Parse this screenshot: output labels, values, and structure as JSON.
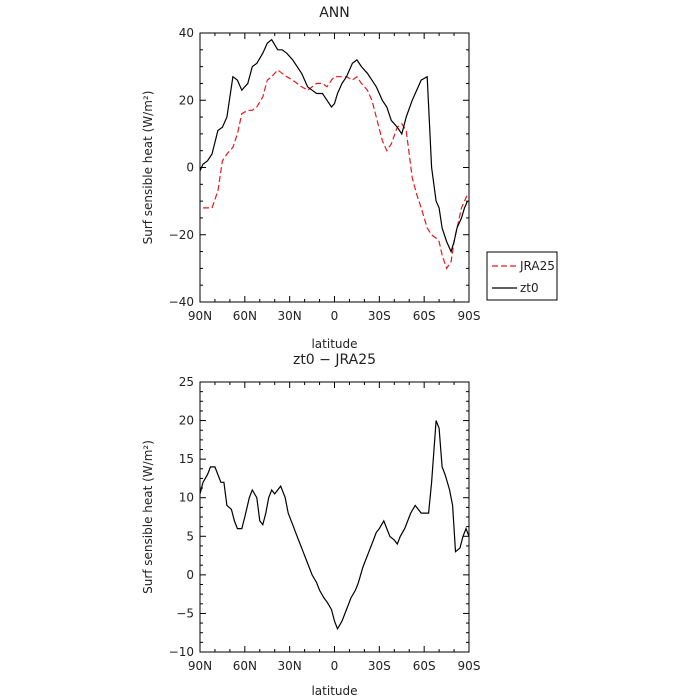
{
  "chart_data": [
    {
      "type": "line",
      "title": "ANN",
      "xlabel": "latitude",
      "ylabel": "Surf sensible heat (W/m²)",
      "xlim": [
        90,
        -90
      ],
      "ylim": [
        -40,
        40
      ],
      "xticks": [
        90,
        60,
        30,
        0,
        -30,
        -60,
        -90
      ],
      "xtick_labels": [
        "90N",
        "60N",
        "30N",
        "0",
        "30S",
        "60S",
        "90S"
      ],
      "yticks": [
        -40,
        -20,
        0,
        20,
        40
      ],
      "ytick_labels": [
        "−40",
        "−20",
        "0",
        "20",
        "40"
      ],
      "legend": {
        "placement": "right"
      },
      "series": [
        {
          "name": "JRA25",
          "color": "#e41a1c",
          "dash": "dashed",
          "x": [
            88,
            85,
            82,
            78,
            75,
            72,
            68,
            65,
            62,
            58,
            55,
            52,
            48,
            45,
            42,
            38,
            35,
            32,
            28,
            25,
            22,
            18,
            15,
            12,
            8,
            5,
            2,
            0,
            -2,
            -5,
            -8,
            -12,
            -15,
            -18,
            -22,
            -25,
            -28,
            -32,
            -35,
            -38,
            -42,
            -45,
            -48,
            -52,
            -55,
            -58,
            -62,
            -65,
            -68,
            -70,
            -72,
            -75,
            -78,
            -80,
            -82,
            -85,
            -87,
            -89
          ],
          "y": [
            -12,
            -12,
            -12,
            -7,
            2,
            4,
            6,
            10,
            16,
            17,
            17,
            18,
            21,
            26,
            27,
            29,
            28,
            27,
            26,
            25,
            24,
            23,
            24,
            25,
            25,
            24,
            26,
            27,
            27,
            27,
            27,
            26,
            27,
            25,
            23,
            20,
            15,
            8,
            5,
            7,
            12,
            13,
            11,
            -3,
            -8,
            -12,
            -18,
            -20,
            -21,
            -22,
            -26,
            -30,
            -28,
            -22,
            -18,
            -12,
            -10,
            -8
          ]
        },
        {
          "name": "zt0",
          "color": "#000000",
          "dash": "solid",
          "x": [
            90,
            88,
            85,
            82,
            78,
            75,
            72,
            68,
            65,
            62,
            58,
            55,
            52,
            48,
            45,
            42,
            38,
            35,
            32,
            28,
            25,
            22,
            18,
            15,
            12,
            8,
            5,
            2,
            0,
            -2,
            -5,
            -8,
            -12,
            -15,
            -18,
            -22,
            -25,
            -28,
            -32,
            -35,
            -38,
            -42,
            -45,
            -48,
            -52,
            -55,
            -58,
            -62,
            -65,
            -68,
            -70,
            -72,
            -75,
            -78,
            -80,
            -82,
            -85,
            -87,
            -89
          ],
          "y": [
            -1,
            1,
            2,
            4,
            11,
            12,
            15,
            27,
            26,
            23,
            25,
            30,
            31,
            34,
            37,
            38,
            35,
            35,
            34,
            32,
            30,
            28,
            24,
            23,
            22,
            22,
            20,
            18,
            19,
            22,
            25,
            27,
            31,
            32,
            30,
            28,
            26,
            24,
            20,
            18,
            14,
            12,
            10,
            15,
            20,
            23,
            26,
            27,
            0,
            -10,
            -12,
            -18,
            -22,
            -25,
            -22,
            -18,
            -15,
            -12,
            -10
          ]
        }
      ]
    },
    {
      "type": "line",
      "title": "zt0 − JRA25",
      "xlabel": "latitude",
      "ylabel": "Surf sensible heat (W/m²)",
      "xlim": [
        90,
        -90
      ],
      "ylim": [
        -10,
        25
      ],
      "xticks": [
        90,
        60,
        30,
        0,
        -30,
        -60,
        -90
      ],
      "xtick_labels": [
        "90N",
        "60N",
        "30N",
        "0",
        "30S",
        "60S",
        "90S"
      ],
      "yticks": [
        -10,
        -5,
        0,
        5,
        10,
        15,
        20,
        25
      ],
      "ytick_labels": [
        "−10",
        "−5",
        "0",
        "5",
        "10",
        "15",
        "20",
        "25"
      ],
      "series": [
        {
          "name": "",
          "color": "#000000",
          "dash": "solid",
          "x": [
            90,
            88,
            85,
            83,
            80,
            78,
            76,
            74,
            72,
            69,
            67,
            65,
            62,
            60,
            57,
            55,
            52,
            50,
            48,
            46,
            44,
            42,
            40,
            38,
            36,
            33,
            31,
            28,
            26,
            24,
            21,
            19,
            17,
            15,
            12,
            10,
            7,
            5,
            2,
            0,
            -2,
            -5,
            -7,
            -9,
            -11,
            -14,
            -16,
            -19,
            -21,
            -23,
            -26,
            -28,
            -30,
            -33,
            -35,
            -37,
            -40,
            -42,
            -44,
            -47,
            -49,
            -51,
            -54,
            -56,
            -58,
            -60,
            -63,
            -65,
            -68,
            -70,
            -72,
            -74,
            -77,
            -79,
            -81,
            -84,
            -86,
            -88,
            -90
          ],
          "y": [
            10.5,
            12,
            13,
            14,
            14,
            13,
            12,
            12,
            9,
            8.5,
            7,
            6,
            6,
            7.5,
            10,
            11,
            10,
            7,
            6.5,
            8,
            10,
            11,
            10.5,
            11,
            11.5,
            10,
            8,
            6.5,
            5.5,
            4.5,
            3,
            2,
            1,
            0,
            -1,
            -2,
            -3,
            -3.5,
            -4.5,
            -6,
            -7,
            -6,
            -5,
            -4,
            -3,
            -2,
            -1,
            1,
            2,
            3,
            4.5,
            5.5,
            6,
            7,
            6,
            5,
            4.5,
            4,
            5,
            6,
            7,
            8,
            9,
            8.5,
            8,
            8,
            8,
            12,
            20,
            19,
            14,
            13,
            11,
            9,
            3,
            3.5,
            5,
            6,
            5
          ]
        }
      ]
    }
  ]
}
